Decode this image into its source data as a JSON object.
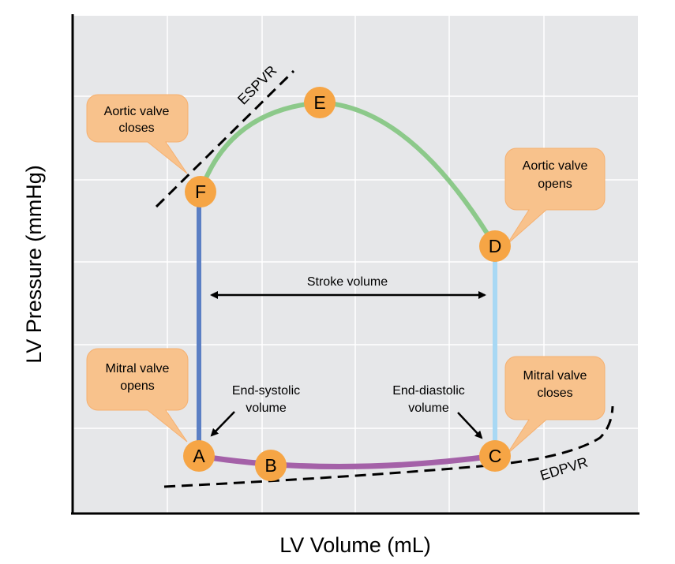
{
  "axes": {
    "x_label": "LV Volume (mL)",
    "y_label": "LV Pressure (mmHg)"
  },
  "points": [
    {
      "id": "A",
      "label": "A"
    },
    {
      "id": "B",
      "label": "B"
    },
    {
      "id": "C",
      "label": "C"
    },
    {
      "id": "D",
      "label": "D"
    },
    {
      "id": "E",
      "label": "E"
    },
    {
      "id": "F",
      "label": "F"
    }
  ],
  "callouts": {
    "aortic_closes": [
      "Aortic valve",
      "closes"
    ],
    "aortic_opens": [
      "Aortic valve",
      "opens"
    ],
    "mitral_opens": [
      "Mitral valve",
      "opens"
    ],
    "mitral_closes": [
      "Mitral valve",
      "closes"
    ]
  },
  "annotations": {
    "stroke_volume": "Stroke volume",
    "end_systolic": [
      "End-systolic",
      "volume"
    ],
    "end_diastolic": [
      "End-diastolic",
      "volume"
    ],
    "espvr": "ESPVR",
    "edpvr": "EDPVR"
  },
  "colors": {
    "background": "#e6e7e9",
    "grid": "#ffffff",
    "ejection": "#8cc98a",
    "isovolumic_relaxation": "#5b7fc4",
    "isovolumic_contraction": "#a8d8f4",
    "filling": "#a461a8",
    "point_fill": "#f6a545",
    "callout_fill": "#f8c28c",
    "callout_stroke": "#f5b070"
  }
}
